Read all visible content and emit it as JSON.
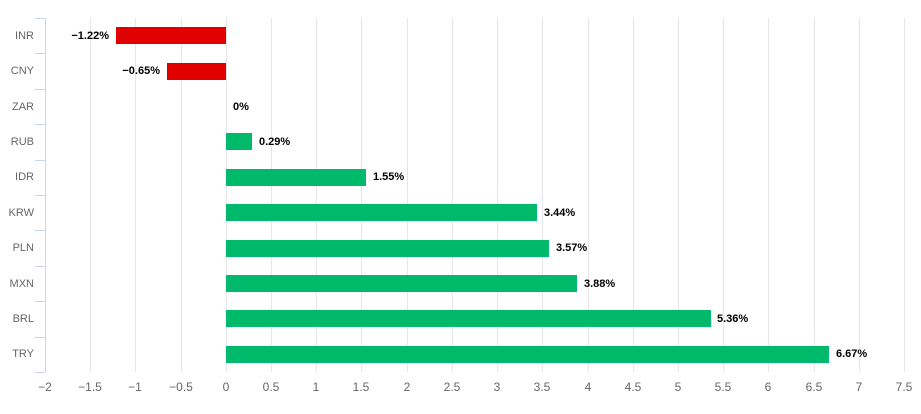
{
  "chart_data": {
    "type": "bar",
    "orientation": "horizontal",
    "title": "",
    "xlabel": "",
    "ylabel": "",
    "categories": [
      "INR",
      "CNY",
      "ZAR",
      "RUB",
      "IDR",
      "KRW",
      "PLN",
      "MXN",
      "BRL",
      "TRY"
    ],
    "values": [
      -1.22,
      -0.65,
      0,
      0.29,
      1.55,
      3.44,
      3.57,
      3.88,
      5.36,
      6.67
    ],
    "labels": [
      "−1.22%",
      "−0.65%",
      "0%",
      "0.29%",
      "1.55%",
      "3.44%",
      "3.57%",
      "3.88%",
      "5.36%",
      "6.67%"
    ],
    "xlim": [
      -2,
      7.5
    ],
    "tick_step": 0.5,
    "x_tick_labels": [
      "−2",
      "−1.5",
      "−1",
      "−0.5",
      "0",
      "0.5",
      "1",
      "1.5",
      "2",
      "2.5",
      "3",
      "3.5",
      "4",
      "4.5",
      "5",
      "5.5",
      "6",
      "6.5",
      "7",
      "7.5"
    ],
    "grid": true,
    "legend": "none",
    "colors": {
      "positive_bar": "#00b96a",
      "negative_bar": "#e00000",
      "gridline": "#e6e6e6",
      "axis_line": "#ccd6eb",
      "tick_label": "#666666",
      "data_label": "#000000",
      "background": "#ffffff"
    }
  }
}
